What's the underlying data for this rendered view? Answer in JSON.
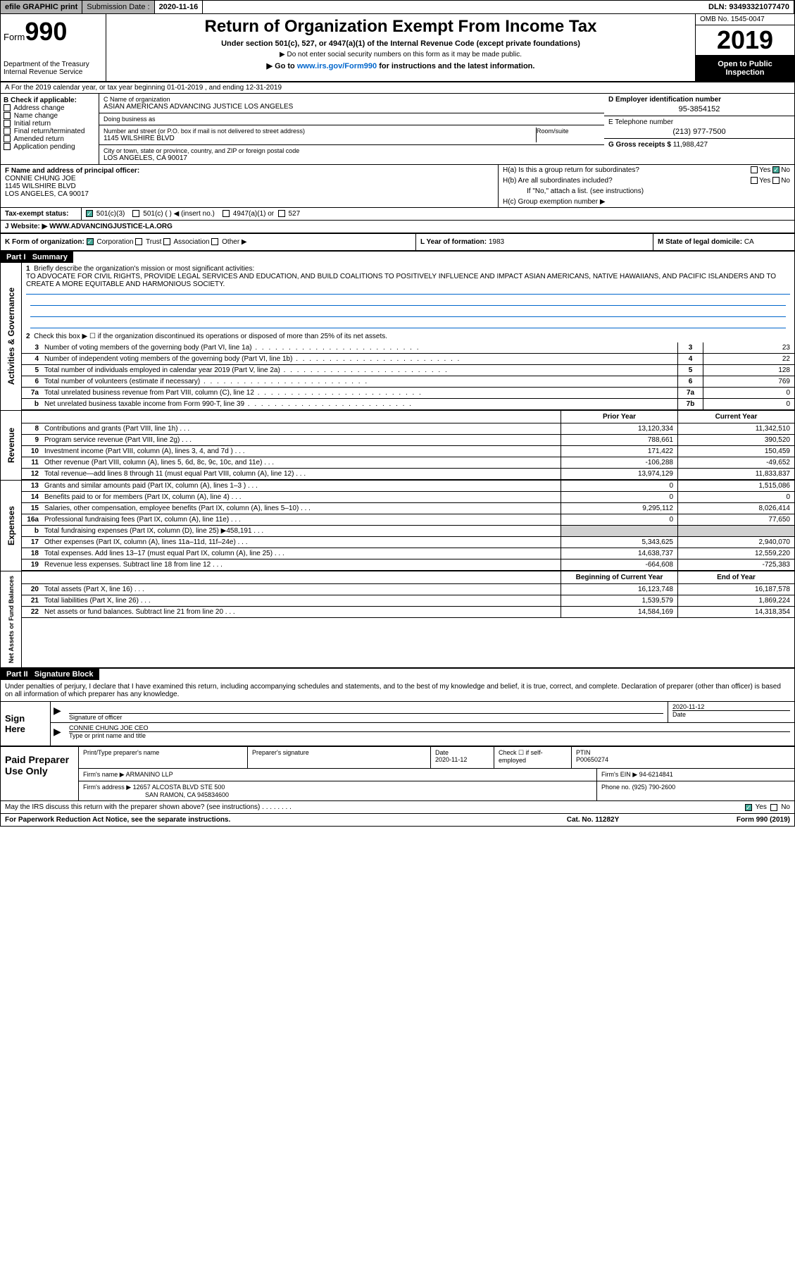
{
  "topbar": {
    "efile": "efile GRAPHIC print",
    "subdate_label": "Submission Date :",
    "subdate": "2020-11-16",
    "dln": "DLN: 93493321077470"
  },
  "header": {
    "form_label": "Form",
    "form_num": "990",
    "title": "Return of Organization Exempt From Income Tax",
    "subsection": "Under section 501(c), 527, or 4947(a)(1) of the Internal Revenue Code (except private foundations)",
    "noenter": "▶ Do not enter social security numbers on this form as it may be made public.",
    "goto_pre": "▶ Go to ",
    "goto_url": "www.irs.gov/Form990",
    "goto_post": " for instructions and the latest information.",
    "dept": "Department of the Treasury\nInternal Revenue Service",
    "omb": "OMB No. 1545-0047",
    "year": "2019",
    "open": "Open to Public Inspection"
  },
  "rowA": "A For the 2019 calendar year, or tax year beginning 01-01-2019   , and ending 12-31-2019",
  "sectionB": {
    "label": "B Check if applicable:",
    "opts": [
      "Address change",
      "Name change",
      "Initial return",
      "Final return/terminated",
      "Amended return",
      "Application pending"
    ]
  },
  "sectionC": {
    "name_label": "C Name of organization",
    "name": "ASIAN AMERICANS ADVANCING JUSTICE LOS ANGELES",
    "dba_label": "Doing business as",
    "addr_label": "Number and street (or P.O. box if mail is not delivered to street address)",
    "room_label": "Room/suite",
    "addr": "1145 WILSHIRE BLVD",
    "city_label": "City or town, state or province, country, and ZIP or foreign postal code",
    "city": "LOS ANGELES, CA  90017"
  },
  "sectionD": {
    "label": "D Employer identification number",
    "val": "95-3854152"
  },
  "sectionE": {
    "label": "E Telephone number",
    "val": "(213) 977-7500"
  },
  "sectionG": {
    "label": "G Gross receipts $ ",
    "val": "11,988,427"
  },
  "sectionF": {
    "label": "F Name and address of principal officer:",
    "name": "CONNIE CHUNG JOE",
    "addr1": "1145 WILSHIRE BLVD",
    "addr2": "LOS ANGELES, CA  90017"
  },
  "sectionH": {
    "a": "H(a)  Is this a group return for subordinates?",
    "b": "H(b)  Are all subordinates included?",
    "note": "If \"No,\" attach a list. (see instructions)",
    "c": "H(c)  Group exemption number ▶",
    "yes": "Yes",
    "no": "No"
  },
  "taxExempt": {
    "label": "Tax-exempt status:",
    "opts": [
      "501(c)(3)",
      "501(c) (  ) ◀ (insert no.)",
      "4947(a)(1) or",
      "527"
    ]
  },
  "sectionJ": {
    "label": "J  Website: ▶ ",
    "val": "WWW.ADVANCINGJUSTICE-LA.ORG"
  },
  "sectionK": {
    "label": "K Form of organization:",
    "opts": [
      "Corporation",
      "Trust",
      "Association",
      "Other ▶"
    ]
  },
  "sectionL": {
    "label": "L Year of formation: ",
    "val": "1983"
  },
  "sectionM": {
    "label": "M State of legal domicile: ",
    "val": "CA"
  },
  "part1": {
    "label": "Part I",
    "title": "Summary",
    "line1_label": "Briefly describe the organization's mission or most significant activities:",
    "mission": "TO ADVOCATE FOR CIVIL RIGHTS, PROVIDE LEGAL SERVICES AND EDUCATION, AND BUILD COALITIONS TO POSITIVELY INFLUENCE AND IMPACT ASIAN AMERICANS, NATIVE HAWAIIANS, AND PACIFIC ISLANDERS AND TO CREATE A MORE EQUITABLE AND HARMONIOUS SOCIETY.",
    "line2": "Check this box ▶ ☐  if the organization discontinued its operations or disposed of more than 25% of its net assets.",
    "gov_rows": [
      {
        "n": "3",
        "lbl": "Number of voting members of the governing body (Part VI, line 1a)",
        "box": "3",
        "val": "23"
      },
      {
        "n": "4",
        "lbl": "Number of independent voting members of the governing body (Part VI, line 1b)",
        "box": "4",
        "val": "22"
      },
      {
        "n": "5",
        "lbl": "Total number of individuals employed in calendar year 2019 (Part V, line 2a)",
        "box": "5",
        "val": "128"
      },
      {
        "n": "6",
        "lbl": "Total number of volunteers (estimate if necessary)",
        "box": "6",
        "val": "769"
      },
      {
        "n": "7a",
        "lbl": "Total unrelated business revenue from Part VIII, column (C), line 12",
        "box": "7a",
        "val": "0"
      },
      {
        "n": "b",
        "lbl": "Net unrelated business taxable income from Form 990-T, line 39",
        "box": "7b",
        "val": "0"
      }
    ],
    "py_label": "Prior Year",
    "cy_label": "Current Year",
    "rev_rows": [
      {
        "n": "8",
        "lbl": "Contributions and grants (Part VIII, line 1h)",
        "py": "13,120,334",
        "cy": "11,342,510"
      },
      {
        "n": "9",
        "lbl": "Program service revenue (Part VIII, line 2g)",
        "py": "788,661",
        "cy": "390,520"
      },
      {
        "n": "10",
        "lbl": "Investment income (Part VIII, column (A), lines 3, 4, and 7d )",
        "py": "171,422",
        "cy": "150,459"
      },
      {
        "n": "11",
        "lbl": "Other revenue (Part VIII, column (A), lines 5, 6d, 8c, 9c, 10c, and 11e)",
        "py": "-106,288",
        "cy": "-49,652"
      },
      {
        "n": "12",
        "lbl": "Total revenue—add lines 8 through 11 (must equal Part VIII, column (A), line 12)",
        "py": "13,974,129",
        "cy": "11,833,837"
      }
    ],
    "exp_rows": [
      {
        "n": "13",
        "lbl": "Grants and similar amounts paid (Part IX, column (A), lines 1–3 )",
        "py": "0",
        "cy": "1,515,086"
      },
      {
        "n": "14",
        "lbl": "Benefits paid to or for members (Part IX, column (A), line 4)",
        "py": "0",
        "cy": "0"
      },
      {
        "n": "15",
        "lbl": "Salaries, other compensation, employee benefits (Part IX, column (A), lines 5–10)",
        "py": "9,295,112",
        "cy": "8,026,414"
      },
      {
        "n": "16a",
        "lbl": "Professional fundraising fees (Part IX, column (A), line 11e)",
        "py": "0",
        "cy": "77,650"
      },
      {
        "n": "b",
        "lbl": "Total fundraising expenses (Part IX, column (D), line 25) ▶458,191",
        "py": "shaded",
        "cy": "shaded"
      },
      {
        "n": "17",
        "lbl": "Other expenses (Part IX, column (A), lines 11a–11d, 11f–24e)",
        "py": "5,343,625",
        "cy": "2,940,070"
      },
      {
        "n": "18",
        "lbl": "Total expenses. Add lines 13–17 (must equal Part IX, column (A), line 25)",
        "py": "14,638,737",
        "cy": "12,559,220"
      },
      {
        "n": "19",
        "lbl": "Revenue less expenses. Subtract line 18 from line 12",
        "py": "-664,608",
        "cy": "-725,383"
      }
    ],
    "boy_label": "Beginning of Current Year",
    "eoy_label": "End of Year",
    "na_rows": [
      {
        "n": "20",
        "lbl": "Total assets (Part X, line 16)",
        "py": "16,123,748",
        "cy": "16,187,578"
      },
      {
        "n": "21",
        "lbl": "Total liabilities (Part X, line 26)",
        "py": "1,539,579",
        "cy": "1,869,224"
      },
      {
        "n": "22",
        "lbl": "Net assets or fund balances. Subtract line 21 from line 20",
        "py": "14,584,169",
        "cy": "14,318,354"
      }
    ],
    "vlabels": {
      "gov": "Activities & Governance",
      "rev": "Revenue",
      "exp": "Expenses",
      "na": "Net Assets or Fund Balances"
    }
  },
  "part2": {
    "label": "Part II",
    "title": "Signature Block",
    "intro": "Under penalties of perjury, I declare that I have examined this return, including accompanying schedules and statements, and to the best of my knowledge and belief, it is true, correct, and complete. Declaration of preparer (other than officer) is based on all information of which preparer has any knowledge.",
    "sign_here": "Sign Here",
    "sig_officer_label": "Signature of officer",
    "sig_date_label": "Date",
    "sig_date": "2020-11-12",
    "sig_name": "CONNIE CHUNG JOE CEO",
    "sig_name_label": "Type or print name and title",
    "paid": "Paid Preparer Use Only",
    "prep_name_label": "Print/Type preparer's name",
    "prep_sig_label": "Preparer's signature",
    "prep_date_label": "Date",
    "prep_date": "2020-11-12",
    "prep_check_label": "Check ☐ if self-employed",
    "ptin_label": "PTIN",
    "ptin": "P00650274",
    "firm_name_label": "Firm's name  ▶",
    "firm_name": "ARMANINO LLP",
    "firm_ein_label": "Firm's EIN ▶",
    "firm_ein": "94-6214841",
    "firm_addr_label": "Firm's address ▶",
    "firm_addr1": "12657 ALCOSTA BLVD STE 500",
    "firm_addr2": "SAN RAMON, CA  945834600",
    "phone_label": "Phone no.",
    "phone": "(925) 790-2600",
    "may_discuss": "May the IRS discuss this return with the preparer shown above? (see instructions)",
    "yes": "Yes",
    "no": "No"
  },
  "footer": {
    "paperwork": "For Paperwork Reduction Act Notice, see the separate instructions.",
    "cat": "Cat. No. 11282Y",
    "form": "Form 990 (2019)"
  }
}
